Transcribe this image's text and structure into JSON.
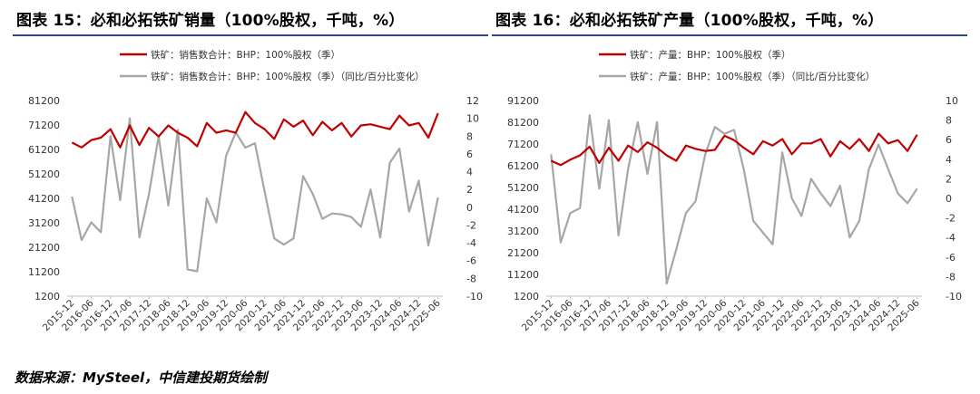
{
  "colors": {
    "primary": "#c00000",
    "secondary": "#a6a6a6",
    "title_rule": "#2b4a86"
  },
  "chart_data": [
    {
      "type": "line",
      "title": "图表 15：必和必拓铁矿销量（100%股权，千吨，%）",
      "x": [
        "2015-12",
        "2016-03",
        "2016-06",
        "2016-09",
        "2016-12",
        "2017-03",
        "2017-06",
        "2017-09",
        "2017-12",
        "2018-03",
        "2018-06",
        "2018-09",
        "2018-12",
        "2019-03",
        "2019-06",
        "2019-09",
        "2019-12",
        "2020-03",
        "2020-06",
        "2020-09",
        "2020-12",
        "2021-03",
        "2021-06",
        "2021-09",
        "2021-12",
        "2022-03",
        "2022-06",
        "2022-09",
        "2022-12",
        "2023-03",
        "2023-06",
        "2023-09",
        "2023-12",
        "2024-03",
        "2024-06",
        "2024-09",
        "2024-12",
        "2025-03",
        "2025-06"
      ],
      "x_tick_labels": [
        "2015-12",
        "2016-06",
        "2016-12",
        "2017-06",
        "2017-12",
        "2018-06",
        "2018-12",
        "2019-06",
        "2019-12",
        "2020-06",
        "2020-12",
        "2021-06",
        "2021-12",
        "2022-06",
        "2022-12",
        "2023-06",
        "2023-12",
        "2024-06",
        "2024-12",
        "2025-06"
      ],
      "ylim": [
        1200,
        81200
      ],
      "y_ticks": [
        "81200",
        "71200",
        "61200",
        "51200",
        "41200",
        "31200",
        "21200",
        "11200",
        "1200"
      ],
      "y2lim": [
        -10,
        12
      ],
      "y2_ticks": [
        "12",
        "10",
        "8",
        "6",
        "4",
        "2",
        "0",
        "-2",
        "-4",
        "-6",
        "-8",
        "-10"
      ],
      "grid": false,
      "legend_position": "top",
      "series": [
        {
          "name": "铁矿：销售数合计：BHP：100%股权（季）",
          "axis": "left",
          "color": "#c00000",
          "width": 2.2,
          "values": [
            64000,
            62000,
            65000,
            66000,
            69500,
            62000,
            71000,
            63000,
            70000,
            66500,
            71000,
            68000,
            66000,
            62500,
            72000,
            68000,
            69000,
            68000,
            76500,
            72000,
            69500,
            65500,
            73500,
            70500,
            73000,
            67000,
            72500,
            69000,
            72000,
            66500,
            71000,
            71500,
            70500,
            69500,
            75000,
            71000,
            72000,
            66000,
            76000
          ]
        },
        {
          "name": "铁矿：销售数合计：BHP：100%股权（季）（同比/百分比变化）",
          "axis": "right",
          "color": "#a6a6a6",
          "width": 2.2,
          "values": [
            1.2,
            -3.7,
            -1.7,
            -2.8,
            8,
            0.8,
            10,
            -3.4,
            1.5,
            8,
            0.2,
            8.7,
            -7,
            -7.2,
            1,
            -1.7,
            5.8,
            8.4,
            6.7,
            7.2,
            1.8,
            -3.5,
            -4.2,
            -3.5,
            3.5,
            1.5,
            -1.3,
            -0.7,
            -0.8,
            -1.1,
            -2.2,
            2,
            -3.4,
            5,
            6.6,
            -0.5,
            3,
            -4.3,
            1.1
          ]
        }
      ]
    },
    {
      "type": "line",
      "title": "图表 16：必和必拓铁矿产量（100%股权，千吨，%）",
      "x": [
        "2015-12",
        "2016-03",
        "2016-06",
        "2016-09",
        "2016-12",
        "2017-03",
        "2017-06",
        "2017-09",
        "2017-12",
        "2018-03",
        "2018-06",
        "2018-09",
        "2018-12",
        "2019-03",
        "2019-06",
        "2019-09",
        "2019-12",
        "2020-03",
        "2020-06",
        "2020-09",
        "2020-12",
        "2021-03",
        "2021-06",
        "2021-09",
        "2021-12",
        "2022-03",
        "2022-06",
        "2022-09",
        "2022-12",
        "2023-03",
        "2023-06",
        "2023-09",
        "2023-12",
        "2024-03",
        "2024-06",
        "2024-09",
        "2024-12",
        "2025-03",
        "2025-06"
      ],
      "x_tick_labels": [
        "2015-12",
        "2016-06",
        "2016-12",
        "2017-06",
        "2017-12",
        "2018-06",
        "2018-12",
        "2019-06",
        "2019-12",
        "2020-06",
        "2020-12",
        "2021-06",
        "2021-12",
        "2022-06",
        "2022-12",
        "2023-06",
        "2023-12",
        "2024-06",
        "2024-12",
        "2025-06"
      ],
      "ylim": [
        1200,
        91200
      ],
      "y_ticks": [
        "91200",
        "81200",
        "71200",
        "61200",
        "51200",
        "41200",
        "31200",
        "21200",
        "11200",
        "1200"
      ],
      "y2lim": [
        -10,
        10
      ],
      "y2_ticks": [
        "10",
        "8",
        "6",
        "4",
        "2",
        "0",
        "-2",
        "-4",
        "-6",
        "-8",
        "-10"
      ],
      "grid": false,
      "legend_position": "top",
      "series": [
        {
          "name": "铁矿：产量：BHP：100%股权（季）",
          "axis": "left",
          "color": "#c00000",
          "width": 2.2,
          "values": [
            63500,
            61500,
            64000,
            66000,
            70000,
            62500,
            69500,
            63500,
            70500,
            67500,
            72000,
            69500,
            66000,
            63500,
            70500,
            69000,
            68000,
            68500,
            75000,
            73000,
            69500,
            66500,
            72500,
            70500,
            73500,
            66500,
            71500,
            71500,
            73500,
            65500,
            72500,
            69000,
            73500,
            68000,
            76000,
            71500,
            73000,
            68000,
            75500
          ]
        },
        {
          "name": "铁矿：产量：BHP：100%股权（季）（同比/百分比变化）",
          "axis": "right",
          "color": "#a6a6a6",
          "width": 2.2,
          "values": [
            4.5,
            -4.5,
            -1.5,
            -1,
            8.5,
            1,
            8,
            -3.8,
            3,
            7.8,
            2.5,
            7.8,
            -8.7,
            -5.2,
            -1.5,
            -0.3,
            4.5,
            7.3,
            6.6,
            7,
            3,
            -2.3,
            -3.5,
            -4.7,
            4.7,
            0,
            -1.8,
            2,
            0.5,
            -0.8,
            1.3,
            -4,
            -2.3,
            3,
            5.5,
            3,
            0.5,
            -0.5,
            1
          ]
        }
      ]
    }
  ],
  "footer": {
    "source": "数据来源：MySteel，中信建投期货绘制"
  }
}
